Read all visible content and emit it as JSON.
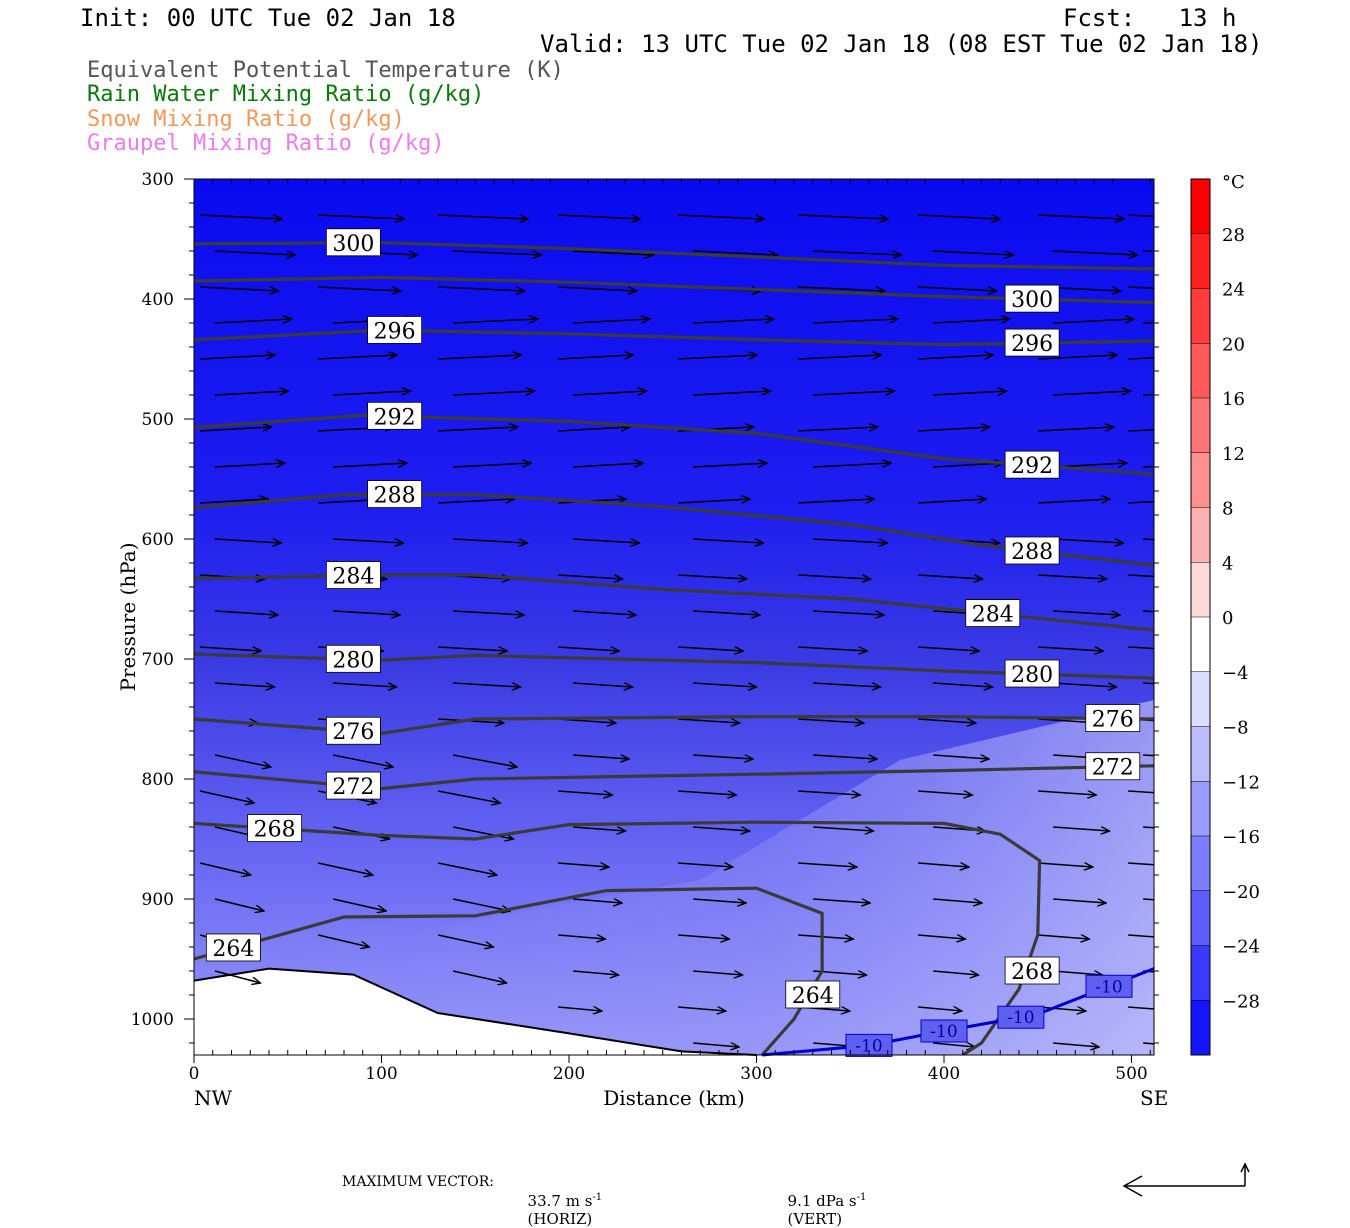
{
  "header": {
    "init": "Init: 00 UTC Tue 02 Jan 18",
    "fcst": "Fcst:   13 h",
    "valid": "Valid: 13 UTC Tue 02 Jan 18 (08 EST Tue 02 Jan 18)"
  },
  "legend": [
    {
      "label": "Equivalent Potential Temperature (K)",
      "color": "#555555"
    },
    {
      "label": "Rain Water Mixing Ratio (g/kg)",
      "color": "#0a7a0a"
    },
    {
      "label": "Snow Mixing Ratio (g/kg)",
      "color": "#f4975a"
    },
    {
      "label": "Graupel Mixing Ratio (g/kg)",
      "color": "#f07af0"
    }
  ],
  "chart_data": {
    "type": "cross-section",
    "xlabel": "Distance (km)",
    "ylabel": "Pressure (hPa)",
    "x_ticks": [
      0,
      100,
      200,
      300,
      400,
      500
    ],
    "xlim": [
      0,
      512
    ],
    "y_ticks": [
      300,
      400,
      500,
      600,
      700,
      800,
      900,
      1000
    ],
    "ylim": [
      1030,
      300
    ],
    "left_end": "NW",
    "right_end": "SE",
    "theta_e_contours": [
      {
        "value": 300,
        "label_x": 85,
        "points": [
          [
            0,
            354
          ],
          [
            100,
            353
          ],
          [
            200,
            358
          ],
          [
            300,
            365
          ],
          [
            400,
            372
          ],
          [
            512,
            375
          ]
        ]
      },
      {
        "value": 300,
        "label_x": 447,
        "points": [
          [
            0,
            385
          ],
          [
            100,
            382
          ],
          [
            200,
            386
          ],
          [
            300,
            392
          ],
          [
            400,
            398
          ],
          [
            512,
            403
          ]
        ]
      },
      {
        "value": 296,
        "label_x": 107,
        "points": [
          [
            0,
            434
          ],
          [
            100,
            426
          ],
          [
            200,
            429
          ],
          [
            300,
            434
          ],
          [
            400,
            438
          ],
          [
            512,
            435
          ]
        ]
      },
      {
        "value": 292,
        "label_x": 107,
        "points": [
          [
            0,
            507
          ],
          [
            90,
            497
          ],
          [
            200,
            502
          ],
          [
            300,
            512
          ],
          [
            400,
            533
          ],
          [
            512,
            546
          ]
        ]
      },
      {
        "value": 288,
        "label_x": 107,
        "points": [
          [
            0,
            574
          ],
          [
            80,
            563
          ],
          [
            150,
            563
          ],
          [
            250,
            573
          ],
          [
            350,
            588
          ],
          [
            420,
            605
          ],
          [
            512,
            622
          ]
        ]
      },
      {
        "value": 284,
        "label_x": 85,
        "points": [
          [
            0,
            633
          ],
          [
            100,
            630
          ],
          [
            150,
            630
          ],
          [
            250,
            642
          ],
          [
            350,
            650
          ],
          [
            450,
            666
          ],
          [
            512,
            676
          ]
        ]
      },
      {
        "value": 280,
        "label_x": 85,
        "points": [
          [
            0,
            696
          ],
          [
            100,
            701
          ],
          [
            150,
            697
          ],
          [
            300,
            703
          ],
          [
            400,
            710
          ],
          [
            512,
            716
          ]
        ]
      },
      {
        "value": 276,
        "label_x": 85,
        "points": [
          [
            0,
            750
          ],
          [
            100,
            762
          ],
          [
            150,
            750
          ],
          [
            300,
            748
          ],
          [
            400,
            748
          ],
          [
            512,
            750
          ]
        ]
      },
      {
        "value": 272,
        "label_x": 85,
        "points": [
          [
            0,
            794
          ],
          [
            100,
            808
          ],
          [
            150,
            800
          ],
          [
            300,
            796
          ],
          [
            400,
            793
          ],
          [
            512,
            789
          ]
        ]
      },
      {
        "value": 268,
        "label_x": 43,
        "points": [
          [
            0,
            837
          ],
          [
            100,
            847
          ],
          [
            150,
            850
          ],
          [
            200,
            838
          ],
          [
            300,
            836
          ],
          [
            400,
            837
          ],
          [
            430,
            846
          ],
          [
            451,
            868
          ],
          [
            450,
            930
          ],
          [
            440,
            975
          ],
          [
            420,
            1020
          ],
          [
            410,
            1030
          ]
        ]
      },
      {
        "value": 264,
        "label_x": 21,
        "points": [
          [
            0,
            950
          ],
          [
            80,
            915
          ],
          [
            150,
            914
          ],
          [
            220,
            893
          ],
          [
            300,
            891
          ],
          [
            335,
            912
          ],
          [
            335,
            960
          ],
          [
            320,
            1000
          ],
          [
            303,
            1030
          ]
        ]
      }
    ],
    "temperature_contours": [
      {
        "value": -10,
        "points": [
          [
            303,
            1030
          ],
          [
            360,
            1022
          ],
          [
            400,
            1010
          ],
          [
            450,
            996
          ],
          [
            512,
            958
          ]
        ]
      }
    ],
    "terrain": [
      [
        0,
        968
      ],
      [
        40,
        958
      ],
      [
        85,
        963
      ],
      [
        130,
        995
      ],
      [
        200,
        1012
      ],
      [
        260,
        1027
      ],
      [
        300,
        1030
      ]
    ],
    "colorbar": {
      "unit": "°C",
      "labels": [
        28,
        24,
        20,
        16,
        12,
        8,
        4,
        0,
        -4,
        -8,
        -12,
        -16,
        -20,
        -24,
        -28
      ]
    },
    "max_vector": {
      "label": "MAXIMUM VECTOR:",
      "horiz": "33.7 m s",
      "horiz_tag": "(HORIZ)",
      "vert": "9.1 dPa s",
      "vert_tag": "(VERT)",
      "exp": "-1"
    }
  }
}
